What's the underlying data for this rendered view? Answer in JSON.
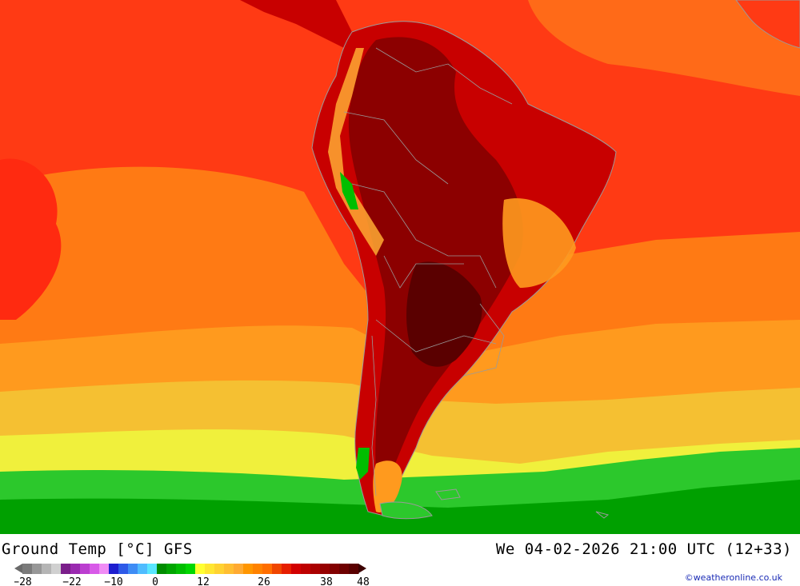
{
  "title": {
    "parameter": "Ground Temp [°C] GFS",
    "datetime": "We 04-02-2026 21:00 UTC (12+33)"
  },
  "credit": "©weatheronline.co.uk",
  "legend": {
    "tick_labels": [
      "-28",
      "-22",
      "-10",
      "0",
      "12",
      "26",
      "38",
      "48"
    ],
    "colors": [
      "#7a7a7a",
      "#979797",
      "#b5b5b5",
      "#d0d0d0",
      "#7a1e8a",
      "#9a2ab0",
      "#bb3ed0",
      "#d85ae8",
      "#f08cf5",
      "#1e1ecf",
      "#2e5ae8",
      "#3e8cf5",
      "#4fbcff",
      "#5ae6ff",
      "#008c00",
      "#00a500",
      "#00be00",
      "#00d700",
      "#ffff32",
      "#ffe632",
      "#ffd232",
      "#ffbe32",
      "#ffaa32",
      "#ff9600",
      "#ff8200",
      "#ff6e00",
      "#f04600",
      "#e61e00",
      "#d20000",
      "#be0000",
      "#aa0000",
      "#960000",
      "#820000",
      "#6e0000",
      "#5a0000"
    ]
  },
  "map": {
    "region": "South America",
    "palette": {
      "ocean_cold": "#00a000",
      "ocean_cool": "#2cc82c",
      "ocean_yellow": "#f0f03c",
      "ocean_gold": "#f5c032",
      "ocean_orange": "#ff9a1e",
      "ocean_warm": "#ff7a14",
      "ocean_hot": "#ff3a14",
      "land_hot": "#c80000",
      "land_very_hot": "#8c0000",
      "land_extreme": "#5a0000",
      "borders": "#9a9a9a"
    }
  }
}
